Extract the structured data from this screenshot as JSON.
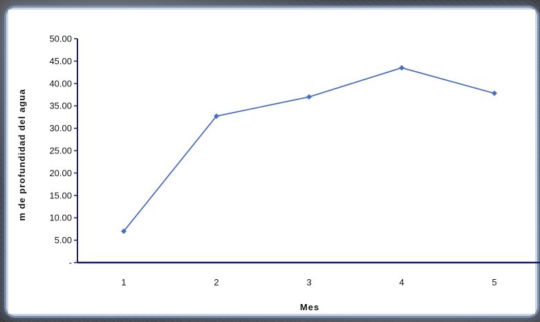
{
  "chart_data": {
    "type": "line",
    "x": [
      1,
      2,
      3,
      4,
      5
    ],
    "series": [
      {
        "values": [
          7.0,
          32.7,
          37.0,
          43.5,
          37.8
        ]
      }
    ],
    "y_ticks": [
      "-",
      "5.00",
      "10.00",
      "15.00",
      "20.00",
      "25.00",
      "30.00",
      "35.00",
      "40.00",
      "45.00",
      "50.00"
    ],
    "x_ticks": [
      "1",
      "2",
      "3",
      "4",
      "5"
    ],
    "xlabel": "Mes",
    "ylabel": "m de profundidad del agua",
    "ylim": [
      0,
      50
    ],
    "grid": false,
    "colors": {
      "line": "#4a6fbf",
      "axis": "#1a1a6e"
    }
  }
}
